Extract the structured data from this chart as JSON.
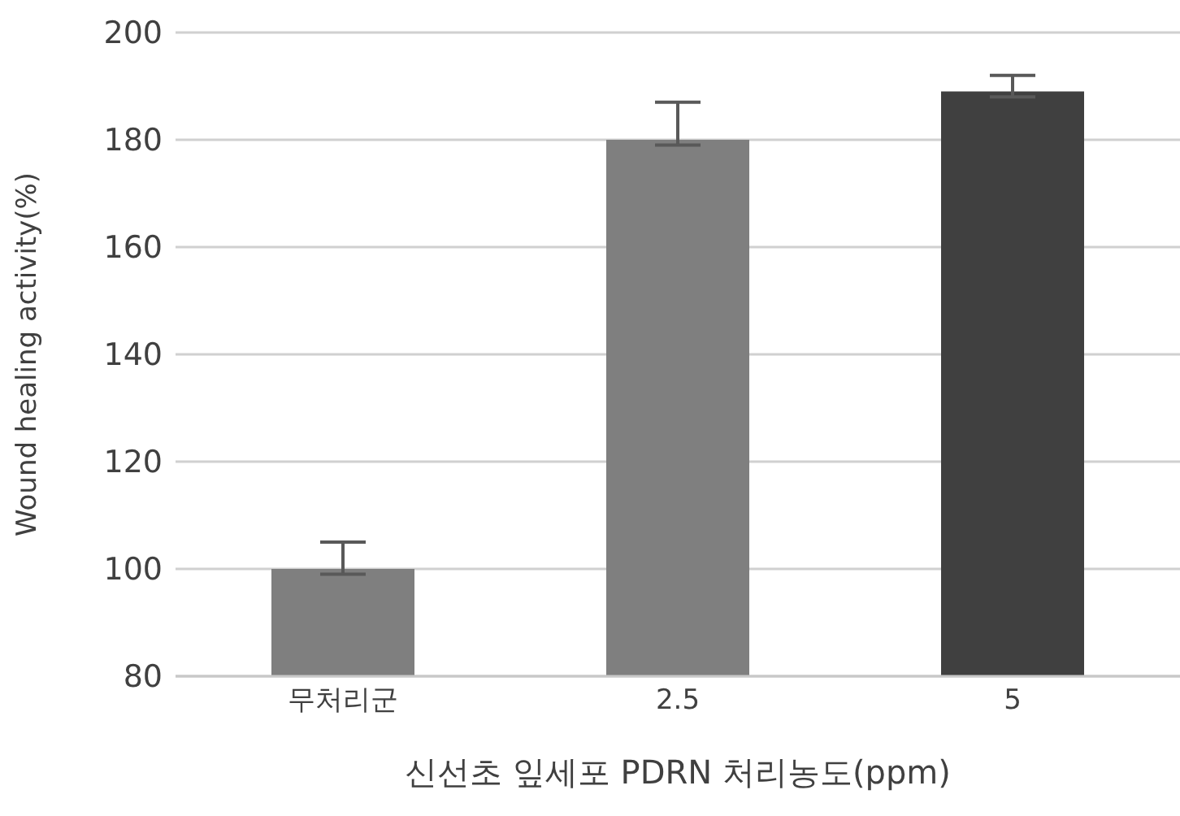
{
  "chart_data": {
    "type": "bar",
    "xlabel": "신선초 잎세포 PDRN 처리농도(ppm)",
    "ylabel": "Wound healing activity(%)",
    "categories": [
      "무처리군",
      "2.5",
      "5"
    ],
    "values": [
      100,
      180,
      189
    ],
    "colors": [
      "#7f7f7f",
      "#7f7f7f",
      "#404040"
    ],
    "errors": [
      [
        99,
        105
      ],
      [
        179,
        187
      ],
      [
        188,
        192
      ]
    ],
    "ylim": [
      80,
      200
    ],
    "yticks": [
      80,
      100,
      120,
      140,
      160,
      180,
      200
    ],
    "grid": "y"
  }
}
